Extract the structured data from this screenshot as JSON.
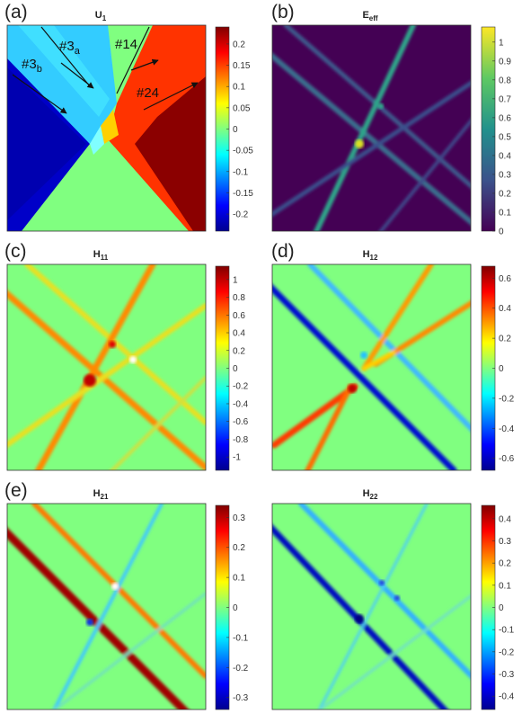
{
  "chart_data": [
    {
      "type": "heatmap",
      "panel_label": "(a)",
      "title": "U",
      "title_sub": "1",
      "colormap": "jet",
      "clim": [
        -0.24,
        0.24
      ],
      "colorbar_ticks": [
        "0.2",
        "0.15",
        "0.1",
        "0.05",
        "0",
        "-0.05",
        "-0.1",
        "-0.15",
        "-0.2"
      ],
      "colorbar_values": [
        0.2,
        0.15,
        0.1,
        0.05,
        0,
        -0.05,
        -0.1,
        -0.15,
        -0.2
      ],
      "annotations": [
        {
          "text": "#3",
          "sub": "a"
        },
        {
          "text": "#3",
          "sub": "b"
        },
        {
          "text": "#14",
          "sub": ""
        },
        {
          "text": "#24",
          "sub": ""
        }
      ]
    },
    {
      "type": "heatmap",
      "panel_label": "(b)",
      "title": "E",
      "title_sub": "eff",
      "colormap": "parula",
      "clim": [
        0,
        1.08
      ],
      "colorbar_ticks": [
        "1",
        "0.9",
        "0.8",
        "0.7",
        "0.6",
        "0.5",
        "0.4",
        "0.3",
        "0.2",
        "0.1",
        "0"
      ],
      "colorbar_values": [
        1,
        0.9,
        0.8,
        0.7,
        0.6,
        0.5,
        0.4,
        0.3,
        0.2,
        0.1,
        0
      ]
    },
    {
      "type": "heatmap",
      "panel_label": "(c)",
      "title": "H",
      "title_sub": "11",
      "colormap": "jet",
      "clim": [
        -1.15,
        1.15
      ],
      "colorbar_ticks": [
        "1",
        "0.8",
        "0.6",
        "0.4",
        "0.2",
        "0",
        "-0.2",
        "-0.4",
        "-0.6",
        "-0.8",
        "-1"
      ],
      "colorbar_values": [
        1,
        0.8,
        0.6,
        0.4,
        0.2,
        0,
        -0.2,
        -0.4,
        -0.6,
        -0.8,
        -1
      ]
    },
    {
      "type": "heatmap",
      "panel_label": "(d)",
      "title": "H",
      "title_sub": "12",
      "colormap": "jet",
      "clim": [
        -0.68,
        0.68
      ],
      "colorbar_ticks": [
        "0.6",
        "0.4",
        "0.2",
        "0",
        "-0.2",
        "-0.4",
        "-0.6"
      ],
      "colorbar_values": [
        0.6,
        0.4,
        0.2,
        0,
        -0.2,
        -0.4,
        -0.6
      ]
    },
    {
      "type": "heatmap",
      "panel_label": "(e)",
      "title": "H",
      "title_sub": "21",
      "colormap": "jet",
      "clim": [
        -0.34,
        0.34
      ],
      "colorbar_ticks": [
        "0.3",
        "0.2",
        "0.1",
        "0",
        "-0.1",
        "-0.2",
        "-0.3"
      ],
      "colorbar_values": [
        0.3,
        0.2,
        0.1,
        0,
        -0.1,
        -0.2,
        -0.3
      ]
    },
    {
      "type": "heatmap",
      "panel_label": "",
      "title": "H",
      "title_sub": "22",
      "colormap": "jet",
      "clim": [
        -0.46,
        0.46
      ],
      "colorbar_ticks": [
        "0.4",
        "0.3",
        "0.2",
        "0.1",
        "0",
        "-0.1",
        "-0.2",
        "-0.3",
        "-0.4"
      ],
      "colorbar_values": [
        0.4,
        0.3,
        0.2,
        0.1,
        0,
        -0.1,
        -0.2,
        -0.3,
        -0.4
      ]
    }
  ]
}
